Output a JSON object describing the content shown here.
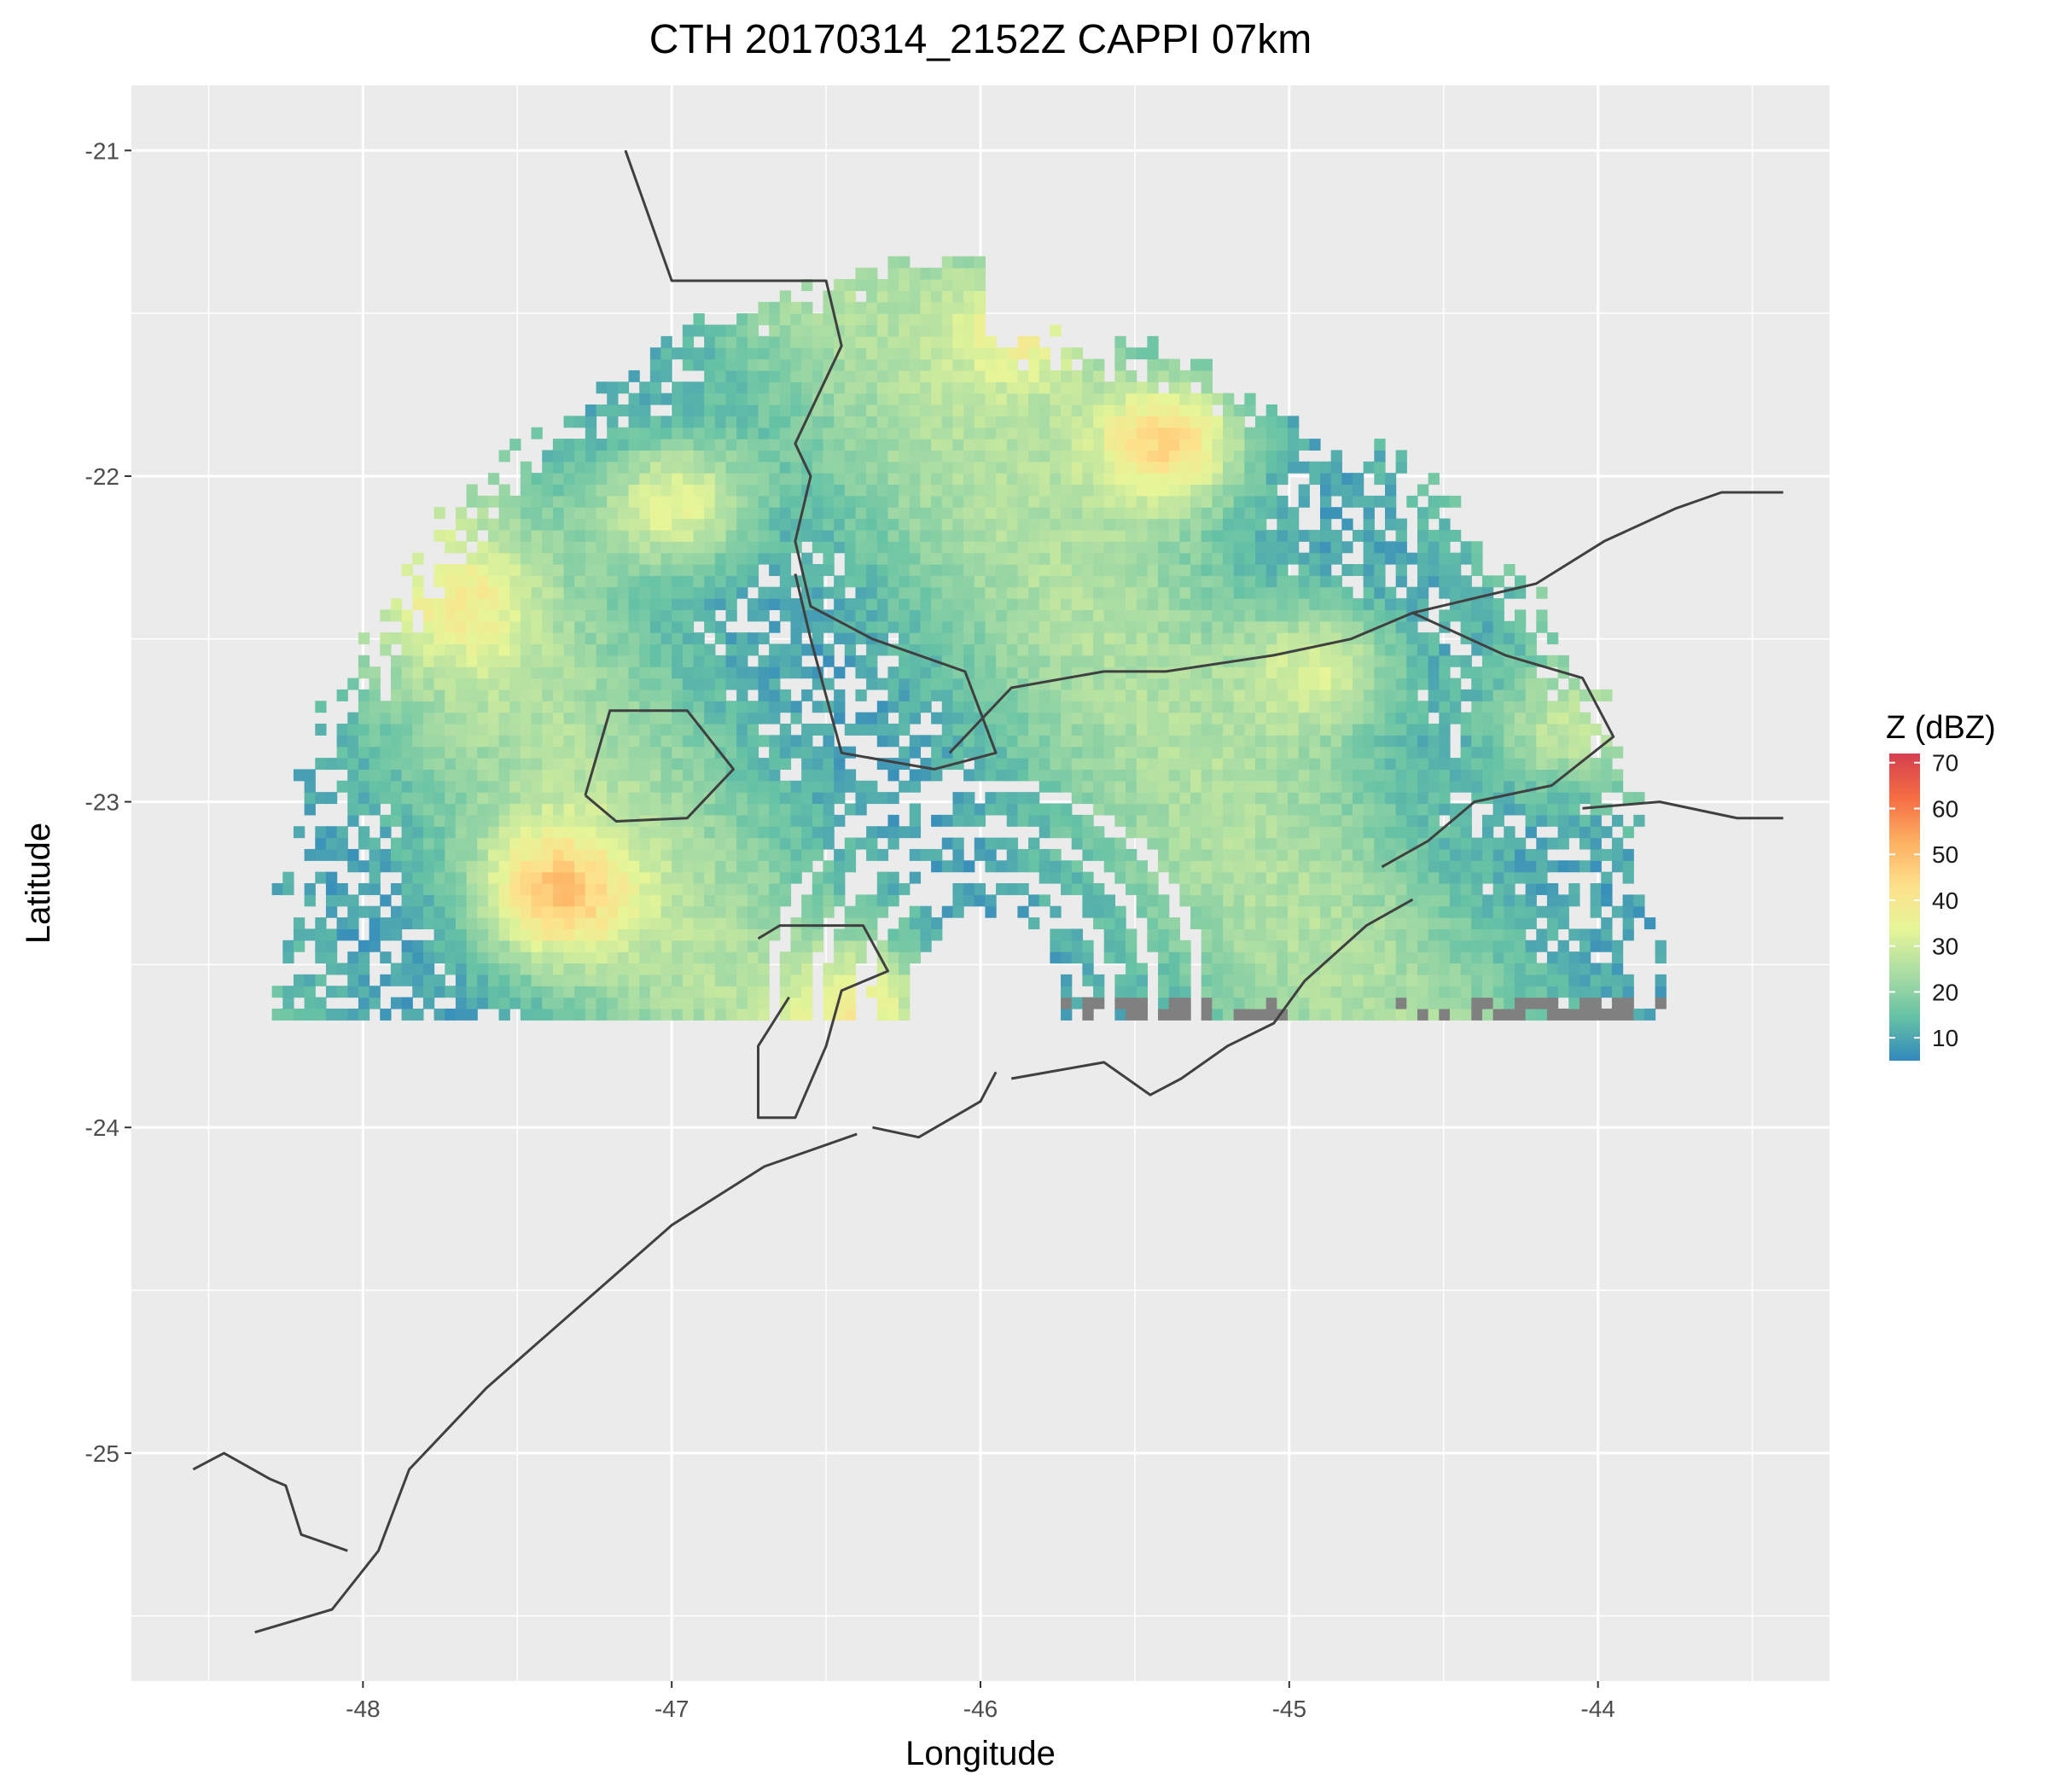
{
  "chart_data": {
    "type": "heatmap",
    "title": "CTH 20170314_2152Z  CAPPI 07km",
    "xlabel": "Longitude",
    "ylabel": "Latitude",
    "xlim": [
      -48.75,
      -43.25
    ],
    "ylim": [
      -25.7,
      -20.8
    ],
    "x_ticks": [
      -48,
      -47,
      -46,
      -45,
      -44
    ],
    "y_ticks": [
      -21,
      -22,
      -23,
      -24,
      -25
    ],
    "grid": true,
    "colors": {
      "panel": "#ebebeb",
      "grid": "#ffffff",
      "coast": "#404040",
      "no_echo": "#808080"
    },
    "radar": {
      "center": [
        -46.0,
        -23.6
      ],
      "range_km": 250,
      "sector_start_deg": 270,
      "sector_end_deg": 90,
      "gap_rings_km": [
        40,
        55,
        70
      ]
    },
    "legend": {
      "title": "Z (dBZ)",
      "position": "right",
      "ticks": [
        10,
        20,
        30,
        40,
        50,
        60,
        70
      ],
      "range": [
        5,
        72
      ],
      "palette": [
        "#3288bd",
        "#66c2a5",
        "#abdda4",
        "#e6f598",
        "#fee08b",
        "#fdae61",
        "#f46d43",
        "#d53e4f"
      ]
    },
    "echo_cells": [
      {
        "lon": -47.0,
        "lat": -22.1,
        "dbz": 45
      },
      {
        "lon": -47.4,
        "lat": -23.3,
        "dbz": 48
      },
      {
        "lon": -45.4,
        "lat": -21.9,
        "dbz": 52
      },
      {
        "lon": -45.85,
        "lat": -21.55,
        "dbz": 40
      },
      {
        "lon": -44.9,
        "lat": -22.6,
        "dbz": 38
      },
      {
        "lon": -44.15,
        "lat": -22.8,
        "dbz": 36
      },
      {
        "lon": -47.7,
        "lat": -22.4,
        "dbz": 34
      },
      {
        "lon": -46.4,
        "lat": -23.65,
        "dbz": 38
      }
    ],
    "coastline": [
      [
        [
          -47.15,
          -21.0
        ],
        [
          -47.0,
          -21.4
        ],
        [
          -46.5,
          -21.4
        ],
        [
          -46.45,
          -21.6
        ],
        [
          -46.6,
          -21.9
        ],
        [
          -46.55,
          -22.0
        ],
        [
          -46.6,
          -22.2
        ],
        [
          -46.55,
          -22.4
        ],
        [
          -46.35,
          -22.5
        ],
        [
          -46.05,
          -22.6
        ],
        [
          -45.95,
          -22.85
        ],
        [
          -46.15,
          -22.9
        ],
        [
          -46.45,
          -22.85
        ],
        [
          -46.55,
          -22.5
        ],
        [
          -46.6,
          -22.3
        ]
      ],
      [
        [
          -46.1,
          -22.85
        ],
        [
          -45.9,
          -22.65
        ],
        [
          -45.6,
          -22.6
        ],
        [
          -45.4,
          -22.6
        ],
        [
          -45.05,
          -22.55
        ],
        [
          -44.8,
          -22.5
        ],
        [
          -44.6,
          -22.42
        ],
        [
          -44.2,
          -22.33
        ],
        [
          -43.98,
          -22.2
        ],
        [
          -43.75,
          -22.1
        ],
        [
          -43.6,
          -22.05
        ],
        [
          -43.4,
          -22.05
        ]
      ],
      [
        [
          -44.6,
          -22.42
        ],
        [
          -44.3,
          -22.55
        ],
        [
          -44.05,
          -22.62
        ],
        [
          -43.95,
          -22.8
        ],
        [
          -44.15,
          -22.95
        ],
        [
          -44.4,
          -23.0
        ],
        [
          -44.55,
          -23.12
        ],
        [
          -44.7,
          -23.2
        ]
      ],
      [
        [
          -47.28,
          -22.98
        ],
        [
          -47.2,
          -22.72
        ],
        [
          -46.95,
          -22.72
        ],
        [
          -46.8,
          -22.9
        ],
        [
          -46.95,
          -23.05
        ],
        [
          -47.18,
          -23.06
        ],
        [
          -47.28,
          -22.98
        ]
      ],
      [
        [
          -44.05,
          -23.02
        ],
        [
          -43.8,
          -23.0
        ],
        [
          -43.55,
          -23.05
        ],
        [
          -43.4,
          -23.05
        ]
      ],
      [
        [
          -46.72,
          -23.42
        ],
        [
          -46.65,
          -23.38
        ],
        [
          -46.38,
          -23.38
        ],
        [
          -46.3,
          -23.52
        ],
        [
          -46.45,
          -23.58
        ],
        [
          -46.5,
          -23.75
        ],
        [
          -46.6,
          -23.97
        ],
        [
          -46.72,
          -23.97
        ],
        [
          -46.72,
          -23.75
        ],
        [
          -46.62,
          -23.6
        ]
      ],
      [
        [
          -45.9,
          -23.85
        ],
        [
          -45.6,
          -23.8
        ],
        [
          -45.45,
          -23.9
        ],
        [
          -45.35,
          -23.85
        ],
        [
          -45.2,
          -23.75
        ],
        [
          -45.05,
          -23.68
        ],
        [
          -44.95,
          -23.55
        ],
        [
          -44.75,
          -23.38
        ],
        [
          -44.6,
          -23.3
        ]
      ],
      [
        [
          -46.35,
          -24.0
        ],
        [
          -46.2,
          -24.03
        ],
        [
          -46.0,
          -23.92
        ],
        [
          -45.95,
          -23.83
        ]
      ],
      [
        [
          -46.4,
          -24.02
        ],
        [
          -46.7,
          -24.12
        ],
        [
          -47.0,
          -24.3
        ],
        [
          -47.3,
          -24.55
        ],
        [
          -47.6,
          -24.8
        ],
        [
          -47.85,
          -25.05
        ],
        [
          -47.95,
          -25.3
        ],
        [
          -48.1,
          -25.48
        ],
        [
          -48.35,
          -25.55
        ]
      ],
      [
        [
          -48.55,
          -25.05
        ],
        [
          -48.45,
          -25.0
        ],
        [
          -48.3,
          -25.08
        ],
        [
          -48.25,
          -25.1
        ],
        [
          -48.2,
          -25.25
        ],
        [
          -48.05,
          -25.3
        ]
      ]
    ]
  }
}
